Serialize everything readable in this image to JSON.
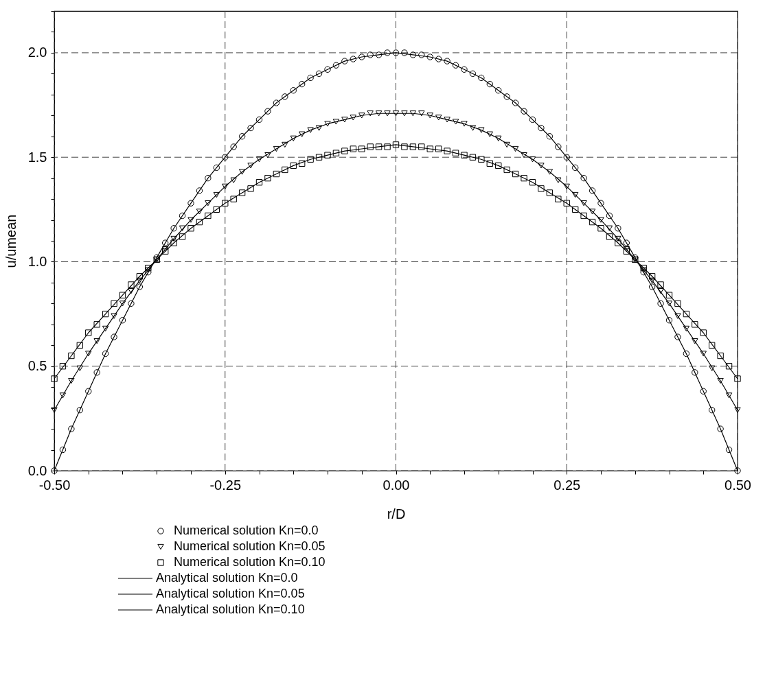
{
  "chart_data": {
    "type": "scatter",
    "xlabel": "r/D",
    "ylabel": "u/umean",
    "xlim": [
      -0.5,
      0.5
    ],
    "ylim": [
      0,
      2.2
    ],
    "xticks": [
      {
        "value": -0.5,
        "label": "-0.50"
      },
      {
        "value": -0.45,
        "label": null
      },
      {
        "value": -0.4,
        "label": null
      },
      {
        "value": -0.35,
        "label": null
      },
      {
        "value": -0.3,
        "label": null
      },
      {
        "value": -0.25,
        "label": "-0.25"
      },
      {
        "value": -0.2,
        "label": null
      },
      {
        "value": -0.15,
        "label": null
      },
      {
        "value": -0.1,
        "label": null
      },
      {
        "value": -0.05,
        "label": null
      },
      {
        "value": 0,
        "label": "0.00"
      },
      {
        "value": 0.05,
        "label": null
      },
      {
        "value": 0.1,
        "label": null
      },
      {
        "value": 0.15,
        "label": null
      },
      {
        "value": 0.2,
        "label": null
      },
      {
        "value": 0.25,
        "label": "0.25"
      },
      {
        "value": 0.3,
        "label": null
      },
      {
        "value": 0.35,
        "label": null
      },
      {
        "value": 0.4,
        "label": null
      },
      {
        "value": 0.45,
        "label": null
      },
      {
        "value": 0.5,
        "label": "0.50"
      }
    ],
    "yticks": [
      {
        "value": 0,
        "label": "0.0"
      },
      {
        "value": 0.1,
        "label": null
      },
      {
        "value": 0.2,
        "label": null
      },
      {
        "value": 0.3,
        "label": null
      },
      {
        "value": 0.4,
        "label": null
      },
      {
        "value": 0.5,
        "label": "0.5"
      },
      {
        "value": 0.6,
        "label": null
      },
      {
        "value": 0.7,
        "label": null
      },
      {
        "value": 0.8,
        "label": null
      },
      {
        "value": 0.9,
        "label": null
      },
      {
        "value": 1.0,
        "label": "1.0"
      },
      {
        "value": 1.1,
        "label": null
      },
      {
        "value": 1.2,
        "label": null
      },
      {
        "value": 1.3,
        "label": null
      },
      {
        "value": 1.4,
        "label": null
      },
      {
        "value": 1.5,
        "label": "1.5"
      },
      {
        "value": 1.6,
        "label": null
      },
      {
        "value": 1.7,
        "label": null
      },
      {
        "value": 1.8,
        "label": null
      },
      {
        "value": 1.9,
        "label": null
      },
      {
        "value": 2.0,
        "label": "2.0"
      },
      {
        "value": 2.1,
        "label": null
      },
      {
        "value": 2.2,
        "label": null
      }
    ],
    "grid": true,
    "legend": "bottom",
    "x": [
      -0.5,
      -0.4875,
      -0.475,
      -0.4625,
      -0.45,
      -0.4375,
      -0.425,
      -0.4125,
      -0.4,
      -0.3875,
      -0.375,
      -0.3625,
      -0.35,
      -0.3375,
      -0.325,
      -0.3125,
      -0.3,
      -0.2875,
      -0.275,
      -0.2625,
      -0.25,
      -0.2375,
      -0.225,
      -0.2125,
      -0.2,
      -0.1875,
      -0.175,
      -0.1625,
      -0.15,
      -0.1375,
      -0.125,
      -0.1125,
      -0.1,
      -0.0875,
      -0.075,
      -0.0625,
      -0.05,
      -0.0375,
      -0.025,
      -0.0125,
      0,
      0.0125,
      0.025,
      0.0375,
      0.05,
      0.0625,
      0.075,
      0.0875,
      0.1,
      0.1125,
      0.125,
      0.1375,
      0.15,
      0.1625,
      0.175,
      0.1875,
      0.2,
      0.2125,
      0.225,
      0.2375,
      0.25,
      0.2625,
      0.275,
      0.2875,
      0.3,
      0.3125,
      0.325,
      0.3375,
      0.35,
      0.3625,
      0.375,
      0.3875,
      0.4,
      0.4125,
      0.425,
      0.4375,
      0.45,
      0.4625,
      0.475,
      0.4875,
      0.5
    ],
    "series": [
      {
        "name": "Numerical solution  Kn=0.0",
        "marker": "circle",
        "color": "#000000",
        "values": [
          0.0,
          0.1,
          0.2,
          0.29,
          0.38,
          0.47,
          0.56,
          0.64,
          0.72,
          0.8,
          0.88,
          0.95,
          1.02,
          1.09,
          1.16,
          1.22,
          1.28,
          1.34,
          1.4,
          1.45,
          1.5,
          1.55,
          1.6,
          1.64,
          1.68,
          1.72,
          1.76,
          1.79,
          1.82,
          1.85,
          1.88,
          1.9,
          1.92,
          1.94,
          1.96,
          1.97,
          1.98,
          1.99,
          1.99,
          2.0,
          2.0,
          2.0,
          1.99,
          1.99,
          1.98,
          1.97,
          1.96,
          1.94,
          1.92,
          1.9,
          1.88,
          1.85,
          1.82,
          1.79,
          1.76,
          1.72,
          1.68,
          1.64,
          1.6,
          1.55,
          1.5,
          1.45,
          1.4,
          1.34,
          1.28,
          1.22,
          1.16,
          1.09,
          1.02,
          0.95,
          0.88,
          0.8,
          0.72,
          0.64,
          0.56,
          0.47,
          0.38,
          0.29,
          0.2,
          0.1,
          0.0
        ]
      },
      {
        "name": "Numerical solution  Kn=0.05",
        "marker": "triangle",
        "color": "#000000",
        "values": [
          0.29,
          0.36,
          0.43,
          0.49,
          0.56,
          0.62,
          0.68,
          0.74,
          0.8,
          0.86,
          0.91,
          0.96,
          1.01,
          1.06,
          1.11,
          1.16,
          1.2,
          1.24,
          1.28,
          1.32,
          1.36,
          1.39,
          1.43,
          1.46,
          1.49,
          1.51,
          1.54,
          1.56,
          1.59,
          1.61,
          1.63,
          1.64,
          1.66,
          1.67,
          1.68,
          1.69,
          1.7,
          1.71,
          1.71,
          1.71,
          1.71,
          1.71,
          1.71,
          1.71,
          1.7,
          1.69,
          1.68,
          1.67,
          1.66,
          1.64,
          1.63,
          1.61,
          1.59,
          1.56,
          1.54,
          1.51,
          1.49,
          1.46,
          1.43,
          1.39,
          1.36,
          1.32,
          1.28,
          1.24,
          1.2,
          1.16,
          1.11,
          1.06,
          1.01,
          0.96,
          0.91,
          0.86,
          0.8,
          0.74,
          0.68,
          0.62,
          0.56,
          0.49,
          0.43,
          0.36,
          0.29
        ]
      },
      {
        "name": "Numerical solution  Kn=0.10",
        "marker": "square",
        "color": "#000000",
        "values": [
          0.44,
          0.5,
          0.55,
          0.6,
          0.66,
          0.7,
          0.75,
          0.8,
          0.84,
          0.89,
          0.93,
          0.97,
          1.01,
          1.05,
          1.09,
          1.12,
          1.16,
          1.19,
          1.22,
          1.25,
          1.28,
          1.3,
          1.33,
          1.35,
          1.38,
          1.4,
          1.42,
          1.44,
          1.46,
          1.47,
          1.49,
          1.5,
          1.51,
          1.52,
          1.53,
          1.54,
          1.54,
          1.55,
          1.55,
          1.55,
          1.56,
          1.55,
          1.55,
          1.55,
          1.54,
          1.54,
          1.53,
          1.52,
          1.51,
          1.5,
          1.49,
          1.47,
          1.46,
          1.44,
          1.42,
          1.4,
          1.38,
          1.35,
          1.33,
          1.3,
          1.28,
          1.25,
          1.22,
          1.19,
          1.16,
          1.12,
          1.09,
          1.05,
          1.01,
          0.97,
          0.93,
          0.89,
          0.84,
          0.8,
          0.75,
          0.7,
          0.66,
          0.6,
          0.55,
          0.5,
          0.44
        ]
      },
      {
        "name": "Analytical solution  Kn=0.0",
        "type": "line",
        "marker": "none",
        "line_style": "solid",
        "color": "#000000",
        "x": [
          -0.5,
          -0.475,
          -0.45,
          -0.425,
          -0.4,
          -0.375,
          -0.35,
          -0.325,
          -0.3,
          -0.275,
          -0.25,
          -0.225,
          -0.2,
          -0.175,
          -0.15,
          -0.125,
          -0.1,
          -0.075,
          -0.05,
          -0.025,
          0,
          0.025,
          0.05,
          0.075,
          0.1,
          0.125,
          0.15,
          0.175,
          0.2,
          0.225,
          0.25,
          0.275,
          0.3,
          0.325,
          0.35,
          0.375,
          0.4,
          0.425,
          0.45,
          0.475,
          0.5
        ],
        "values": [
          0.0,
          0.2,
          0.38,
          0.56,
          0.72,
          0.88,
          1.02,
          1.16,
          1.28,
          1.4,
          1.5,
          1.6,
          1.68,
          1.76,
          1.82,
          1.88,
          1.92,
          1.96,
          1.98,
          1.99,
          2.0,
          1.99,
          1.98,
          1.96,
          1.92,
          1.88,
          1.82,
          1.76,
          1.68,
          1.6,
          1.5,
          1.4,
          1.28,
          1.16,
          1.02,
          0.88,
          0.72,
          0.56,
          0.38,
          0.2,
          0.0
        ]
      },
      {
        "name": "Analytical solution  Kn=0.05",
        "type": "line",
        "marker": "none",
        "line_style": "solid",
        "color": "#000000",
        "x": [
          -0.5,
          -0.475,
          -0.45,
          -0.425,
          -0.4,
          -0.375,
          -0.35,
          -0.325,
          -0.3,
          -0.275,
          -0.25,
          -0.225,
          -0.2,
          -0.175,
          -0.15,
          -0.125,
          -0.1,
          -0.075,
          -0.05,
          -0.025,
          0,
          0.025,
          0.05,
          0.075,
          0.1,
          0.125,
          0.15,
          0.175,
          0.2,
          0.225,
          0.25,
          0.275,
          0.3,
          0.325,
          0.35,
          0.375,
          0.4,
          0.425,
          0.45,
          0.475,
          0.5
        ],
        "values": [
          0.29,
          0.43,
          0.56,
          0.68,
          0.8,
          0.91,
          1.01,
          1.11,
          1.2,
          1.28,
          1.36,
          1.43,
          1.49,
          1.54,
          1.59,
          1.63,
          1.66,
          1.68,
          1.7,
          1.71,
          1.71,
          1.71,
          1.7,
          1.68,
          1.66,
          1.63,
          1.59,
          1.54,
          1.49,
          1.43,
          1.36,
          1.28,
          1.2,
          1.11,
          1.01,
          0.91,
          0.8,
          0.68,
          0.56,
          0.43,
          0.29
        ]
      },
      {
        "name": "Analytical solution  Kn=0.10",
        "type": "line",
        "marker": "none",
        "line_style": "solid",
        "color": "#000000",
        "x": [
          -0.5,
          -0.475,
          -0.45,
          -0.425,
          -0.4,
          -0.375,
          -0.35,
          -0.325,
          -0.3,
          -0.275,
          -0.25,
          -0.225,
          -0.2,
          -0.175,
          -0.15,
          -0.125,
          -0.1,
          -0.075,
          -0.05,
          -0.025,
          0,
          0.025,
          0.05,
          0.075,
          0.1,
          0.125,
          0.15,
          0.175,
          0.2,
          0.225,
          0.25,
          0.275,
          0.3,
          0.325,
          0.35,
          0.375,
          0.4,
          0.425,
          0.45,
          0.475,
          0.5
        ],
        "values": [
          0.44,
          0.55,
          0.66,
          0.75,
          0.84,
          0.93,
          1.01,
          1.09,
          1.16,
          1.22,
          1.28,
          1.33,
          1.38,
          1.42,
          1.46,
          1.49,
          1.51,
          1.53,
          1.54,
          1.55,
          1.56,
          1.55,
          1.54,
          1.53,
          1.51,
          1.49,
          1.46,
          1.42,
          1.38,
          1.33,
          1.28,
          1.22,
          1.16,
          1.09,
          1.01,
          0.93,
          0.84,
          0.75,
          0.66,
          0.55,
          0.44
        ]
      }
    ]
  }
}
